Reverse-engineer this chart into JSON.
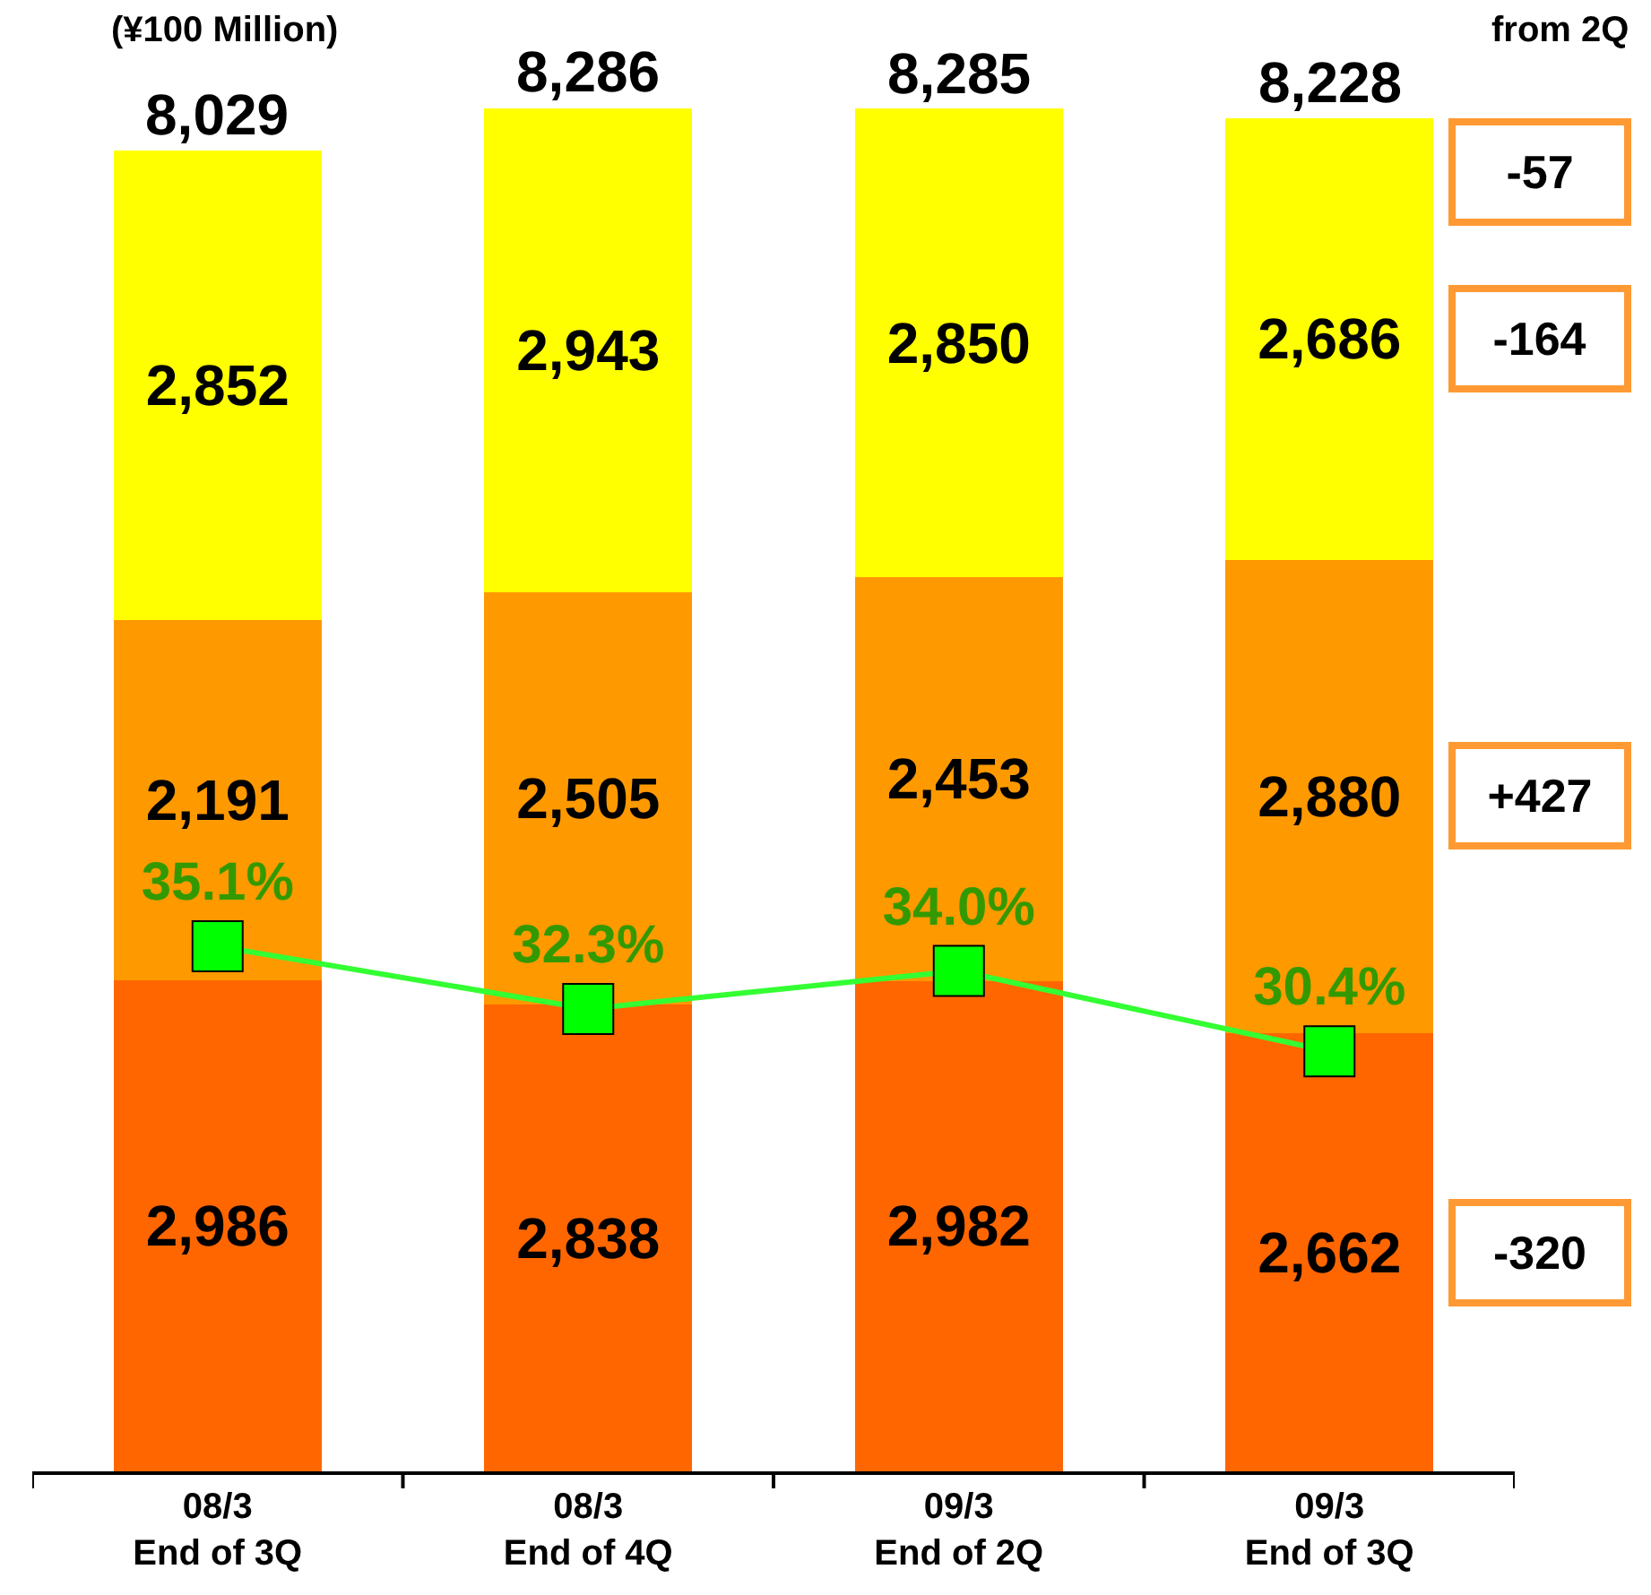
{
  "chart_data": {
    "type": "bar",
    "stacked": true,
    "categories": [
      "08/3\nEnd of 3Q",
      "08/3\nEnd of 4Q",
      "09/3\nEnd of 2Q",
      "09/3\nEnd of 3Q"
    ],
    "series": [
      {
        "color": "#ff6600",
        "values": [
          2986,
          2838,
          2982,
          2662
        ],
        "value_labels": [
          "2,986",
          "2,838",
          "2,982",
          "2,662"
        ]
      },
      {
        "color": "#ff9900",
        "values": [
          2191,
          2505,
          2453,
          2880
        ],
        "value_labels": [
          "2,191",
          "2,505",
          "2,453",
          "2,880"
        ]
      },
      {
        "color": "#ffff00",
        "values": [
          2852,
          2943,
          2850,
          2686
        ],
        "value_labels": [
          "2,852",
          "2,943",
          "2,850",
          "2,686"
        ]
      },
      {
        "type": "line",
        "axis": "y2",
        "color": "#33ff33",
        "marker": "square",
        "values": [
          35.1,
          32.3,
          34.0,
          30.4
        ],
        "value_labels": [
          "35.1%",
          "32.3%",
          "34.0%",
          "30.4%"
        ]
      }
    ],
    "totals": [
      "8,029",
      "8,286",
      "8,285",
      "8,228"
    ],
    "annotations": [
      "(¥100 Million)",
      "from 2Q",
      "-57",
      "-164",
      "+427",
      "-320"
    ]
  }
}
